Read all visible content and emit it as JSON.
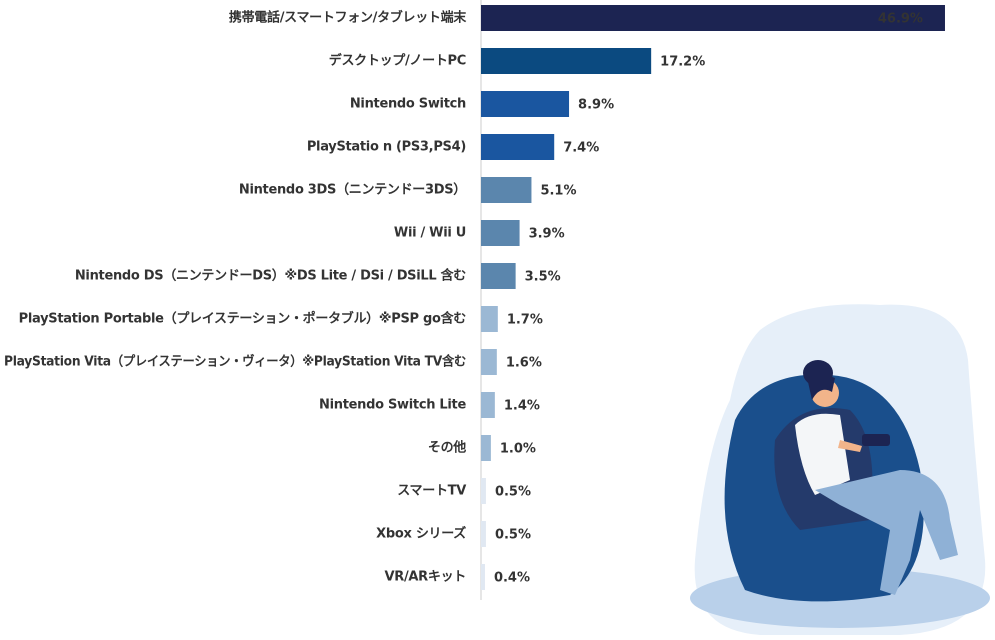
{
  "chart_data": {
    "type": "hbar",
    "categories": [
      "携帯電話/スマートフォン/タブレット端末",
      "デスクトップ/ノートPC",
      "Nintendo Switch",
      "PlayStatio n (PS3,PS4)",
      "Nintendo 3DS（ニンテンドー3DS）",
      "Wii / Wii U",
      "Nintendo DS（ニンテンドーDS）※DS Lite / DSi / DSiLL 含む",
      "PlayStation Portable（プレイステーション・ポータブル）※PSP go含む",
      "PlayStation Vita（プレイステーション・ヴィータ）※PlayStation Vita TV含む",
      "Nintendo Switch Lite",
      "その他",
      "スマートTV",
      "Xbox シリーズ",
      "VR/ARキット"
    ],
    "values": [
      46.9,
      17.2,
      8.9,
      7.4,
      5.1,
      3.9,
      3.5,
      1.7,
      1.6,
      1.4,
      1.0,
      0.5,
      0.5,
      0.4
    ],
    "value_labels": [
      "46.9%",
      "17.2%",
      "8.9%",
      "7.4%",
      "5.1%",
      "3.9%",
      "3.5%",
      "1.7%",
      "1.6%",
      "1.4%",
      "1.0%",
      "0.5%",
      "0.5%",
      "0.4%"
    ],
    "colors": [
      "#1c2452",
      "#0b4a80",
      "#1a56a0",
      "#1a56a0",
      "#5b86ad",
      "#5b86ad",
      "#5b86ad",
      "#9bb8d4",
      "#9bb8d4",
      "#9bb8d4",
      "#9bb8d4",
      "#e0e8f2",
      "#e0e8f2",
      "#e0e8f2"
    ]
  }
}
